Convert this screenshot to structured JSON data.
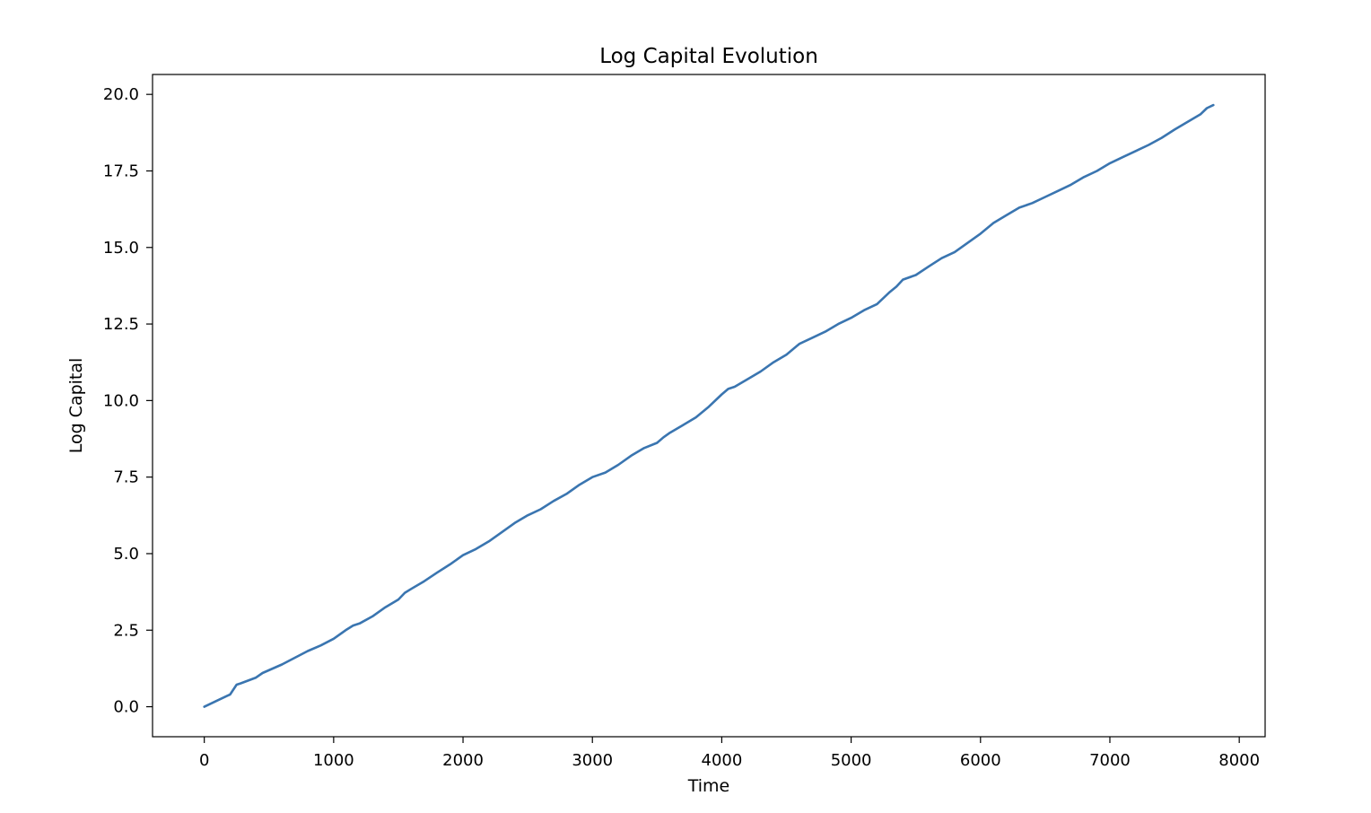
{
  "chart_data": {
    "type": "line",
    "title": "Log Capital Evolution",
    "xlabel": "Time",
    "ylabel": "Log Capital",
    "xlim": [
      -400,
      8200
    ],
    "ylim": [
      -0.98,
      20.65
    ],
    "xticks": [
      0,
      1000,
      2000,
      3000,
      4000,
      5000,
      6000,
      7000,
      8000
    ],
    "xtick_labels": [
      "0",
      "1000",
      "2000",
      "3000",
      "4000",
      "5000",
      "6000",
      "7000",
      "8000"
    ],
    "yticks": [
      0,
      2.5,
      5,
      7.5,
      10,
      12.5,
      15,
      17.5,
      20
    ],
    "ytick_labels": [
      "0.0",
      "2.5",
      "5.0",
      "7.5",
      "10.0",
      "12.5",
      "15.0",
      "17.5",
      "20.0"
    ],
    "grid": false,
    "legend": "none",
    "colors": {
      "line": "#3a75b0",
      "axes": "#000000"
    },
    "series": [
      {
        "x": [
          0,
          100,
          200,
          250,
          280,
          400,
          450,
          600,
          700,
          800,
          900,
          1000,
          1100,
          1150,
          1200,
          1300,
          1400,
          1500,
          1550,
          1600,
          1700,
          1800,
          1900,
          2000,
          2100,
          2200,
          2300,
          2400,
          2500,
          2600,
          2700,
          2800,
          2900,
          3000,
          3100,
          3200,
          3300,
          3400,
          3500,
          3550,
          3600,
          3700,
          3800,
          3900,
          4000,
          4050,
          4100,
          4200,
          4300,
          4400,
          4500,
          4600,
          4700,
          4800,
          4900,
          5000,
          5100,
          5200,
          5300,
          5350,
          5400,
          5500,
          5600,
          5700,
          5800,
          5900,
          6000,
          6100,
          6200,
          6300,
          6400,
          6500,
          6600,
          6700,
          6800,
          6900,
          7000,
          7100,
          7200,
          7300,
          7400,
          7500,
          7600,
          7700,
          7750,
          7800
        ],
        "y": [
          0.0,
          0.2,
          0.4,
          0.72,
          0.76,
          0.95,
          1.1,
          1.38,
          1.6,
          1.82,
          2.0,
          2.22,
          2.52,
          2.65,
          2.72,
          2.95,
          3.25,
          3.5,
          3.72,
          3.85,
          4.1,
          4.38,
          4.65,
          4.95,
          5.15,
          5.4,
          5.7,
          6.0,
          6.25,
          6.45,
          6.72,
          6.95,
          7.25,
          7.5,
          7.65,
          7.9,
          8.2,
          8.45,
          8.62,
          8.8,
          8.95,
          9.2,
          9.45,
          9.8,
          10.2,
          10.38,
          10.45,
          10.7,
          10.95,
          11.25,
          11.5,
          11.85,
          12.05,
          12.25,
          12.5,
          12.7,
          12.95,
          13.15,
          13.55,
          13.72,
          13.95,
          14.1,
          14.38,
          14.65,
          14.85,
          15.15,
          15.45,
          15.8,
          16.05,
          16.3,
          16.45,
          16.65,
          16.85,
          17.05,
          17.3,
          17.5,
          17.75,
          17.95,
          18.15,
          18.35,
          18.58,
          18.85,
          19.1,
          19.35,
          19.55,
          19.65
        ]
      }
    ]
  }
}
